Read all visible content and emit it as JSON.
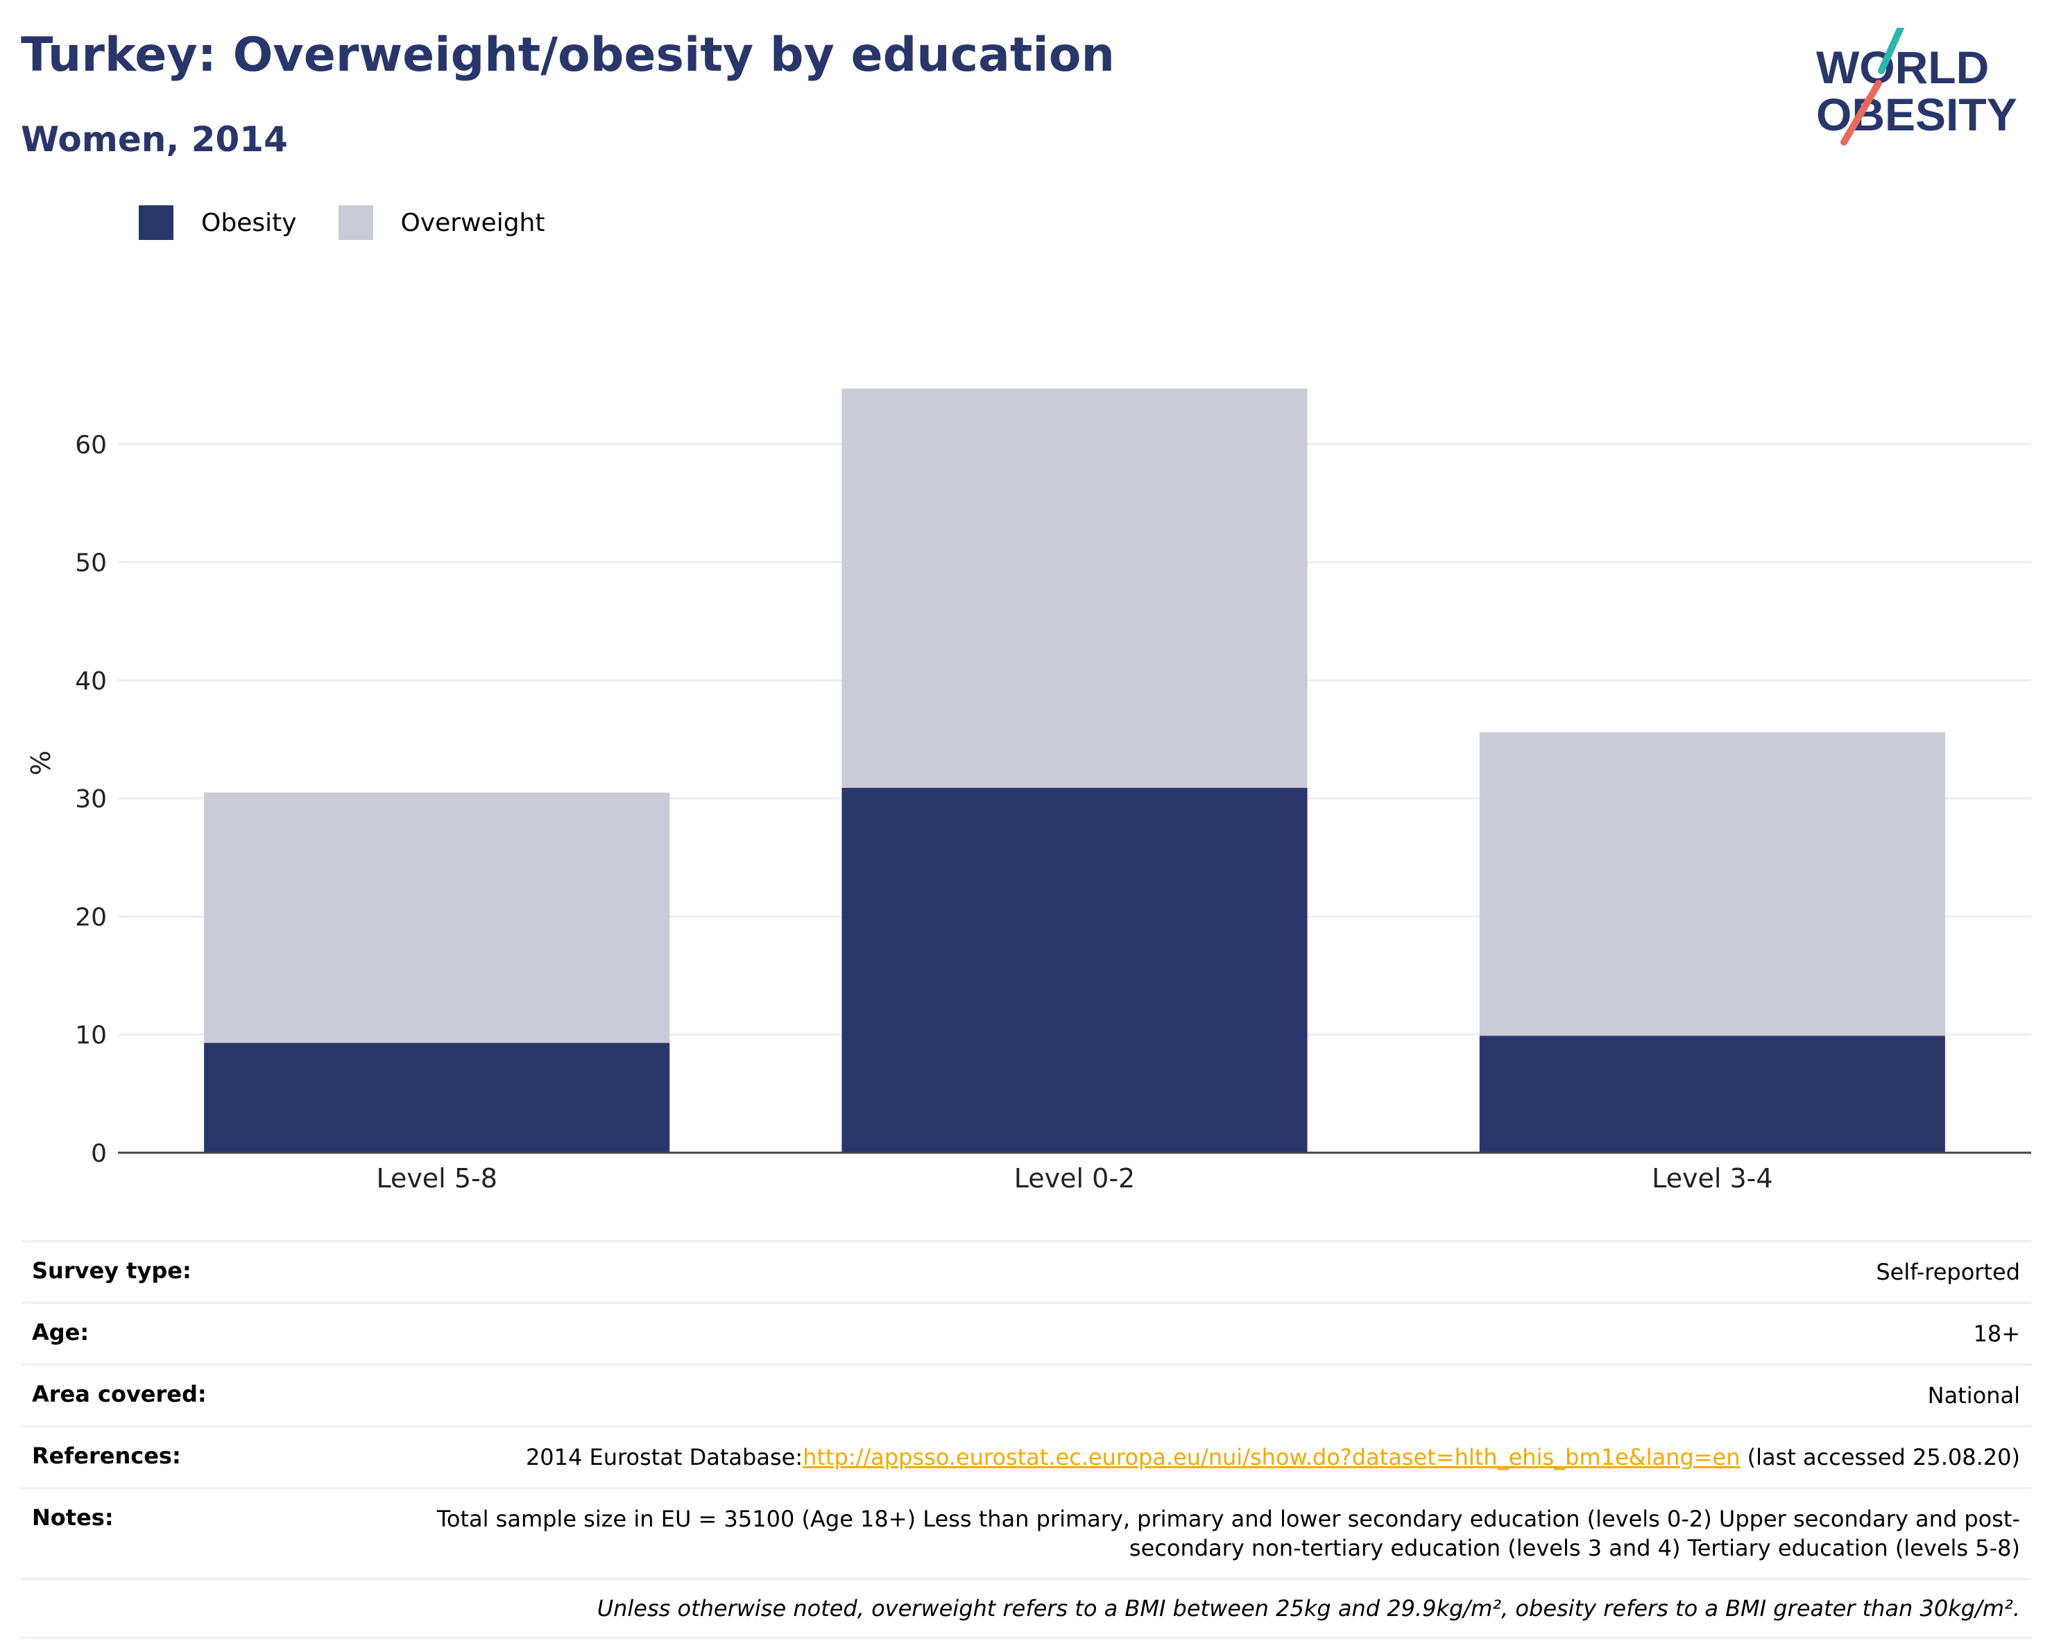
{
  "header": {
    "title": "Turkey: Overweight/obesity by education",
    "subtitle": "Women, 2014"
  },
  "logo": {
    "line1": "WORLD",
    "line2": "OBESITY"
  },
  "colors": {
    "obesity": "#29366a",
    "overweight": "#c9cbd7",
    "accent": "#29366a",
    "link": "#f2a900"
  },
  "chart_data": {
    "type": "bar",
    "stacked": true,
    "categories": [
      "Level 5-8",
      "Level 0-2",
      "Level 3-4"
    ],
    "series": [
      {
        "name": "Obesity",
        "values": [
          9.3,
          30.9,
          9.9
        ]
      },
      {
        "name": "Overweight",
        "values": [
          21.2,
          33.8,
          25.7
        ]
      }
    ],
    "ylabel": "%",
    "xlabel": "",
    "ylim": [
      0,
      70
    ],
    "yticks": [
      0,
      10,
      20,
      30,
      40,
      50,
      60
    ],
    "grid": true,
    "legend": "top-left"
  },
  "info": {
    "survey_type": {
      "label": "Survey type:",
      "value": "Self-reported"
    },
    "age": {
      "label": "Age:",
      "value": "18+"
    },
    "area": {
      "label": "Area covered:",
      "value": "National"
    },
    "references": {
      "label": "References:",
      "prefix": "2014 Eurostat Database:",
      "link": "http://appsso.eurostat.ec.europa.eu/nui/show.do?dataset=hlth_ehis_bm1e&lang=en",
      "suffix": " (last accessed 25.08.20)"
    },
    "notes": {
      "label": "Notes:",
      "value": "Total sample size in EU = 35100 (Age 18+) Less than primary, primary and lower secondary education (levels 0-2) Upper secondary and post-secondary non-tertiary education (levels 3 and 4) Tertiary education (levels 5-8)"
    },
    "footnote": "Unless otherwise noted, overweight refers to a BMI between 25kg and 29.9kg/m², obesity refers to a BMI greater than 30kg/m²."
  }
}
